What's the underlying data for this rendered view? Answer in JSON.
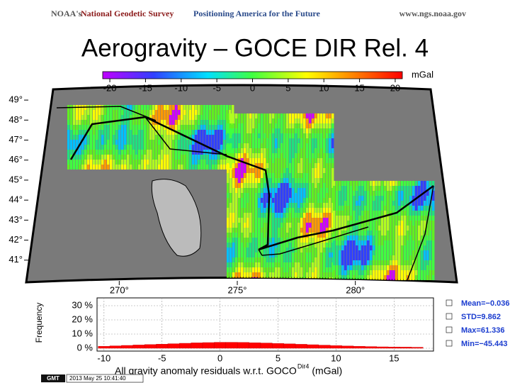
{
  "header": {
    "agency": "NOAA's",
    "office": "National Geodetic Survey",
    "tagline": "Positioning America for the Future",
    "url": "www.ngs.noaa.gov"
  },
  "title": "Aerogravity – GOCE DIR Rel. 4",
  "colorbar": {
    "unit": "mGal",
    "lim": [
      -21,
      21
    ],
    "ticks": [
      -20,
      -15,
      -10,
      -5,
      0,
      5,
      10,
      15,
      20
    ]
  },
  "map": {
    "xlim": [
      266,
      284
    ],
    "ylim": [
      40,
      49.5
    ],
    "xticks": [
      {
        "value": 270,
        "label": "270°"
      },
      {
        "value": 275,
        "label": "275°"
      },
      {
        "value": 280,
        "label": "280°"
      }
    ],
    "yticks": [
      {
        "value": 41,
        "label": "41°"
      },
      {
        "value": 42,
        "label": "42°"
      },
      {
        "value": 43,
        "label": "43°"
      },
      {
        "value": 44,
        "label": "44°"
      },
      {
        "value": 45,
        "label": "45°"
      },
      {
        "value": 46,
        "label": "46°"
      },
      {
        "value": 47,
        "label": "47°"
      },
      {
        "value": 48,
        "label": "48°"
      },
      {
        "value": 49,
        "label": "49°"
      }
    ]
  },
  "chart_data": {
    "type": "histogram",
    "ylabel": "Frequency",
    "xlabel": "All gravity anomaly residuals w.r.t. GOCO",
    "xlabel_superscript": "Dir4",
    "xlabel_unit": "(mGal)",
    "color": "#ff0000",
    "grid": true,
    "bins": [
      -10.5,
      -9.5,
      -8.5,
      -7.5,
      -6.5,
      -5.5,
      -4.5,
      -3.5,
      -2.5,
      -1.5,
      -0.5,
      0.5,
      1.5,
      2.5,
      3.5,
      4.5,
      5.5,
      6.5,
      7.5,
      8.5,
      9.5,
      10.5,
      11.5,
      12.5,
      13.5,
      14.5,
      15.5,
      16.5,
      17.5
    ],
    "values": [
      1.4,
      1.7,
      2.0,
      2.3,
      2.6,
      2.9,
      3.2,
      3.5,
      3.8,
      4.0,
      4.2,
      4.2,
      4.1,
      3.9,
      3.7,
      3.4,
      3.1,
      2.8,
      2.5,
      2.2,
      1.9,
      1.6,
      1.4,
      1.2,
      1.0,
      0.9,
      0.8,
      0.7
    ],
    "xlim": [
      -10.6,
      18.4
    ],
    "xticks": [
      -10,
      -5,
      0,
      5,
      10,
      15
    ],
    "ylim": [
      -2,
      35.5
    ],
    "yticks": [
      {
        "value": 0,
        "label": "0 %"
      },
      {
        "value": 10,
        "label": "10 %"
      },
      {
        "value": 20,
        "label": "20 %"
      },
      {
        "value": 30,
        "label": "30 %"
      }
    ],
    "stats": [
      "Mean=−0.036",
      "STD=9.862",
      "Max=61.336",
      "Min=−45.443"
    ]
  },
  "footer": {
    "logo": "GMT",
    "timestamp": "2013 May 25 10:41:40"
  }
}
